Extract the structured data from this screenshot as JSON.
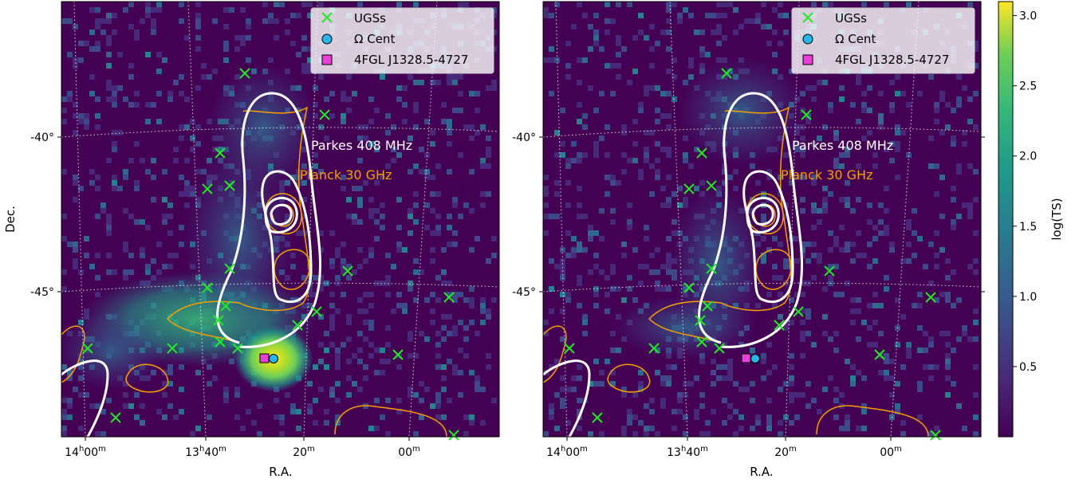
{
  "colors": {
    "background": "#440154",
    "ugs": "#22e922",
    "omega_cent": "#29b6e8",
    "fgl": "#e83fd8",
    "parkes": "#ffffff",
    "planck": "#f5a000"
  },
  "chart_data": {
    "type": "heatmap",
    "colormap": "viridis",
    "colorbar": {
      "label": "log(TS)",
      "range": [
        0.0,
        3.1
      ],
      "ticks": [
        "0.5",
        "1.0",
        "1.5",
        "2.0",
        "2.5",
        "3.0"
      ]
    },
    "axes": {
      "xlabel": "R.A.",
      "ylabel": "Dec.",
      "x_ticks": [
        {
          "h": "14",
          "hs": "h",
          "m": "00",
          "ms": "m"
        },
        {
          "h": "13",
          "hs": "h",
          "m": "40",
          "ms": "m"
        },
        {
          "h": "",
          "hs": "",
          "m": "20",
          "ms": "m"
        },
        {
          "h": "",
          "hs": "",
          "m": "00",
          "ms": "m"
        }
      ],
      "y_ticks": [
        "-40°",
        "-45°"
      ]
    },
    "legend": {
      "position": "top-right",
      "entries": [
        {
          "marker": "x",
          "label": "UGSs"
        },
        {
          "marker": "circle",
          "label": "Ω Cent"
        },
        {
          "marker": "square",
          "label": "4FGL J1328.5-4727"
        }
      ]
    },
    "contour_labels": {
      "parkes": "Parkes 408 MHz",
      "planck": "Planck 30 GHz"
    },
    "panels": [
      {
        "name": "left",
        "residual": false
      },
      {
        "name": "right",
        "residual": true
      }
    ]
  }
}
